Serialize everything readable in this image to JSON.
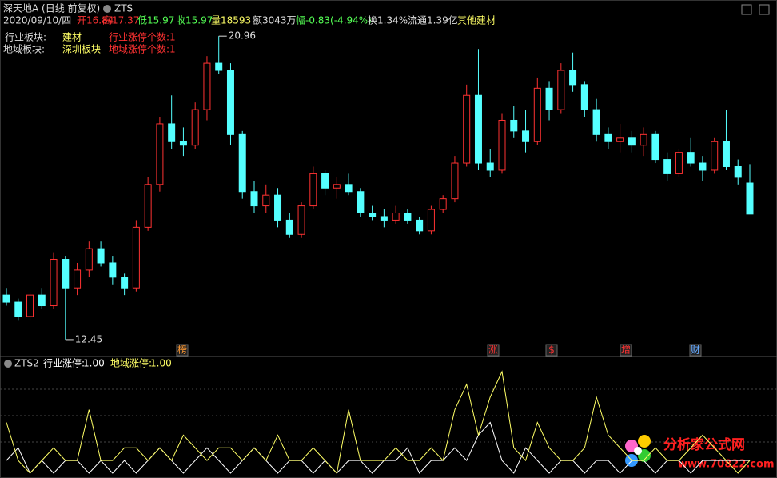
{
  "header": {
    "title": "深天地A (日线 前复权)",
    "indicator": "ZTS",
    "info": [
      "2020/09/10/四",
      "开16.84",
      "高17.37",
      "低15.97",
      "收15.97",
      "量18593",
      "额3043万",
      "幅-0.83(-4.94%)",
      "换1.34%",
      "流通1.39亿",
      "其他建材"
    ]
  },
  "sector": {
    "industry_label": "行业板块:",
    "industry": "建材",
    "industry_count": "行业涨停个数:1",
    "region_label": "地域板块:",
    "region": "深圳板块",
    "region_count": "地域涨停个数:1"
  },
  "events": [
    "榜",
    "涨",
    "$",
    "增",
    "财"
  ],
  "watermark": {
    "name": "分析家公式网",
    "url": "www.70822.com"
  },
  "chart_data": [
    {
      "type": "candlestick",
      "up_color": "#ff3232",
      "down_color": "#54ffff",
      "ylim": [
        12.0,
        21.3
      ],
      "ohlc": [
        [
          13.7,
          13.9,
          13.4,
          13.5
        ],
        [
          13.5,
          13.6,
          13.0,
          13.1
        ],
        [
          13.1,
          13.8,
          13.0,
          13.7
        ],
        [
          13.7,
          13.9,
          13.3,
          13.4
        ],
        [
          13.4,
          14.9,
          13.3,
          14.7
        ],
        [
          14.7,
          14.8,
          12.45,
          13.9
        ],
        [
          13.9,
          14.6,
          13.7,
          14.4
        ],
        [
          14.4,
          15.2,
          14.2,
          15.0
        ],
        [
          15.0,
          15.2,
          14.5,
          14.6
        ],
        [
          14.6,
          14.8,
          14.0,
          14.2
        ],
        [
          14.2,
          14.3,
          13.7,
          13.9
        ],
        [
          13.9,
          15.8,
          13.8,
          15.6
        ],
        [
          15.6,
          17.0,
          15.5,
          16.8
        ],
        [
          16.8,
          18.7,
          16.6,
          18.5
        ],
        [
          18.5,
          19.3,
          17.8,
          18.0
        ],
        [
          18.0,
          18.4,
          17.6,
          17.9
        ],
        [
          17.9,
          19.1,
          17.8,
          18.9
        ],
        [
          18.9,
          20.4,
          18.6,
          20.2
        ],
        [
          20.2,
          20.96,
          19.9,
          20.0
        ],
        [
          20.0,
          20.2,
          17.9,
          18.2
        ],
        [
          18.2,
          18.3,
          16.4,
          16.6
        ],
        [
          16.6,
          16.9,
          16.0,
          16.2
        ],
        [
          16.2,
          16.8,
          16.0,
          16.5
        ],
        [
          16.5,
          16.7,
          15.6,
          15.8
        ],
        [
          15.8,
          16.0,
          15.3,
          15.4
        ],
        [
          15.4,
          16.3,
          15.3,
          16.2
        ],
        [
          16.2,
          17.3,
          16.1,
          17.1
        ],
        [
          17.1,
          17.2,
          16.5,
          16.7
        ],
        [
          16.7,
          17.0,
          16.4,
          16.8
        ],
        [
          16.8,
          17.1,
          16.5,
          16.6
        ],
        [
          16.6,
          16.7,
          15.9,
          16.0
        ],
        [
          16.0,
          16.2,
          15.8,
          15.9
        ],
        [
          15.9,
          16.1,
          15.6,
          15.8
        ],
        [
          15.8,
          16.2,
          15.7,
          16.0
        ],
        [
          16.0,
          16.1,
          15.7,
          15.8
        ],
        [
          15.8,
          15.9,
          15.4,
          15.5
        ],
        [
          15.5,
          16.2,
          15.4,
          16.1
        ],
        [
          16.1,
          16.5,
          16.0,
          16.4
        ],
        [
          16.4,
          17.6,
          16.3,
          17.4
        ],
        [
          17.4,
          19.6,
          17.3,
          19.3
        ],
        [
          19.3,
          20.6,
          17.2,
          17.4
        ],
        [
          17.4,
          17.8,
          17.0,
          17.2
        ],
        [
          17.2,
          18.8,
          17.1,
          18.6
        ],
        [
          18.6,
          19.0,
          18.1,
          18.3
        ],
        [
          18.3,
          18.9,
          17.7,
          18.0
        ],
        [
          18.0,
          19.8,
          17.9,
          19.5
        ],
        [
          19.5,
          19.7,
          18.6,
          18.9
        ],
        [
          18.9,
          20.2,
          18.8,
          20.0
        ],
        [
          20.0,
          20.5,
          19.4,
          19.6
        ],
        [
          19.6,
          19.7,
          18.7,
          18.9
        ],
        [
          18.9,
          19.2,
          18.0,
          18.2
        ],
        [
          18.2,
          18.4,
          17.8,
          18.0
        ],
        [
          18.0,
          18.5,
          17.7,
          18.1
        ],
        [
          18.1,
          18.3,
          17.7,
          17.9
        ],
        [
          17.9,
          18.4,
          17.6,
          18.2
        ],
        [
          18.2,
          18.3,
          17.4,
          17.5
        ],
        [
          17.5,
          17.7,
          16.9,
          17.1
        ],
        [
          17.1,
          17.8,
          17.0,
          17.7
        ],
        [
          17.7,
          18.1,
          17.3,
          17.4
        ],
        [
          17.4,
          17.6,
          16.9,
          17.2
        ],
        [
          17.2,
          18.1,
          17.1,
          18.0
        ],
        [
          18.0,
          18.9,
          17.2,
          17.3
        ],
        [
          17.3,
          17.5,
          16.8,
          17.0
        ],
        [
          16.84,
          17.37,
          15.97,
          15.97
        ]
      ]
    },
    {
      "type": "line",
      "title": "ZTS2",
      "ylim": [
        0,
        8
      ],
      "series": [
        {
          "name": "行业涨停:",
          "color": "#ffffff",
          "value_labels_last": "1.00",
          "values": [
            1,
            2,
            0,
            1,
            0,
            1,
            1,
            0,
            1,
            0,
            1,
            0,
            1,
            2,
            1,
            0,
            1,
            2,
            1,
            0,
            1,
            2,
            1,
            0,
            1,
            1,
            0,
            1,
            0,
            1,
            1,
            0,
            1,
            1,
            2,
            0,
            1,
            1,
            2,
            1,
            3,
            4,
            1,
            0,
            2,
            1,
            0,
            1,
            1,
            0,
            1,
            1,
            0,
            1,
            1,
            0,
            1,
            1,
            0,
            1,
            1,
            1,
            1,
            1
          ]
        },
        {
          "name": "地域涨停:",
          "color": "#ffff66",
          "value_labels_last": "1.00",
          "values": [
            4,
            1,
            0,
            1,
            2,
            1,
            1,
            5,
            1,
            1,
            2,
            2,
            1,
            2,
            1,
            3,
            2,
            1,
            2,
            2,
            1,
            2,
            1,
            3,
            1,
            1,
            2,
            1,
            0,
            5,
            1,
            1,
            1,
            2,
            1,
            1,
            2,
            1,
            5,
            7,
            3,
            6,
            8,
            2,
            1,
            4,
            2,
            1,
            1,
            2,
            6,
            3,
            2,
            1,
            1,
            2,
            1,
            1,
            2,
            3,
            2,
            1,
            0,
            1
          ]
        }
      ]
    }
  ]
}
